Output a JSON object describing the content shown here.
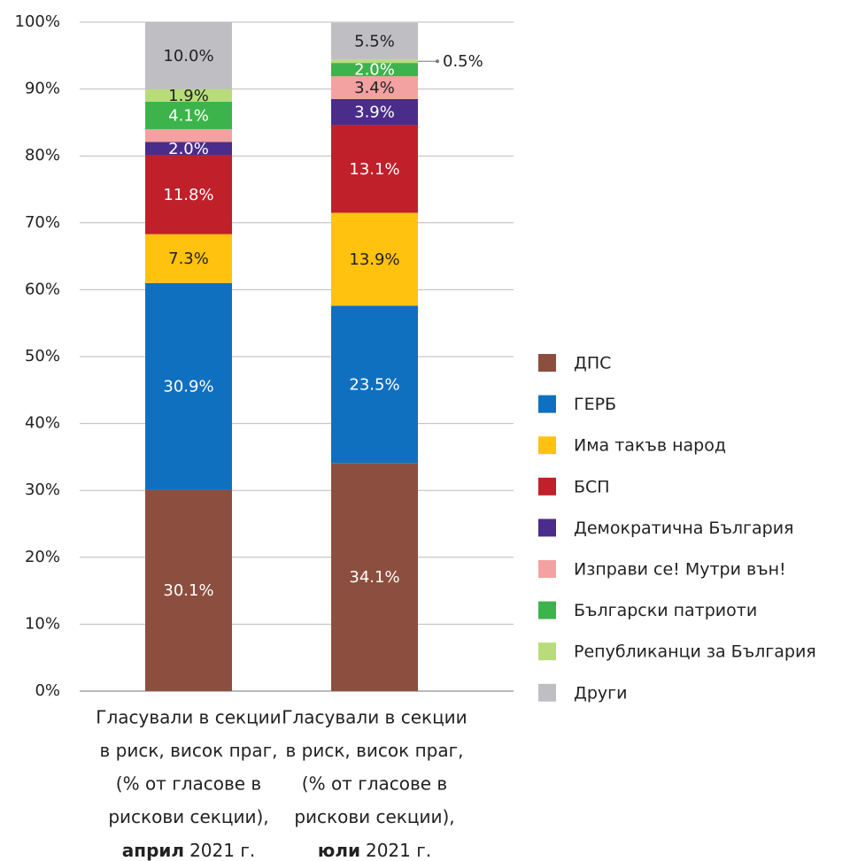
{
  "chart_data": {
    "type": "stacked_bar",
    "categories": [
      {
        "lines": [
          "Гласували в секции",
          "в риск, висок праг,",
          "(% от гласове в",
          "рискови секции),"
        ],
        "bold": "април",
        "tail": "2021 г."
      },
      {
        "lines": [
          "Гласували в секции",
          "в риск, висок праг,",
          "(% от гласове в",
          "рискови секции),"
        ],
        "bold": "юли",
        "tail": "2021 г."
      }
    ],
    "series": [
      {
        "name": "ДПС",
        "color": "#8c4f3f",
        "label_color": "#ffffff",
        "values": [
          30.1,
          34.1
        ],
        "value_labels": [
          "30.1%",
          "34.1%"
        ]
      },
      {
        "name": "ГЕРБ",
        "color": "#1070c0",
        "label_color": "#ffffff",
        "values": [
          30.9,
          23.5
        ],
        "value_labels": [
          "30.9%",
          "23.5%"
        ]
      },
      {
        "name": "Има такъв народ",
        "color": "#ffc20e",
        "label_color": "#222222",
        "values": [
          7.3,
          13.9
        ],
        "value_labels": [
          "7.3%",
          "13.9%"
        ]
      },
      {
        "name": "БСП",
        "color": "#c0202a",
        "label_color": "#ffffff",
        "values": [
          11.8,
          13.1
        ],
        "value_labels": [
          "11.8%",
          "13.1%"
        ]
      },
      {
        "name": "Демократична България",
        "color": "#4a2d8a",
        "label_color": "#ffffff",
        "values": [
          2.0,
          3.9
        ],
        "value_labels": [
          "2.0%",
          "3.9%"
        ]
      },
      {
        "name": "Изправи се! Мутри вън!",
        "color": "#f4a1a1",
        "label_color": "#222222",
        "values": [
          1.9,
          3.4
        ],
        "value_labels": [
          null,
          "3.4%"
        ]
      },
      {
        "name": "Български патриоти",
        "color": "#3cb44b",
        "label_color": "#ffffff",
        "values": [
          4.1,
          2.0
        ],
        "value_labels": [
          "4.1%",
          "2.0%"
        ]
      },
      {
        "name": "Републиканци за България",
        "color": "#b8dc7a",
        "label_color": "#222222",
        "values": [
          1.9,
          0.5
        ],
        "value_labels": [
          "1.9%",
          "0.5%"
        ]
      },
      {
        "name": "Други",
        "color": "#bfbfc3",
        "label_color": "#222222",
        "values": [
          10.0,
          5.5
        ],
        "value_labels": [
          "10.0%",
          "5.5%"
        ]
      }
    ],
    "ylim": [
      0,
      100
    ],
    "yticks": [
      {
        "value": 0,
        "label": "0%"
      },
      {
        "value": 10,
        "label": "10%"
      },
      {
        "value": 20,
        "label": "20%"
      },
      {
        "value": 30,
        "label": "30%"
      },
      {
        "value": 40,
        "label": "40%"
      },
      {
        "value": 50,
        "label": "50%"
      },
      {
        "value": 60,
        "label": "60%"
      },
      {
        "value": 70,
        "label": "70%"
      },
      {
        "value": 80,
        "label": "80%"
      },
      {
        "value": 90,
        "label": "90%"
      },
      {
        "value": 100,
        "label": "100%"
      }
    ],
    "grid": true,
    "legend": "right"
  }
}
